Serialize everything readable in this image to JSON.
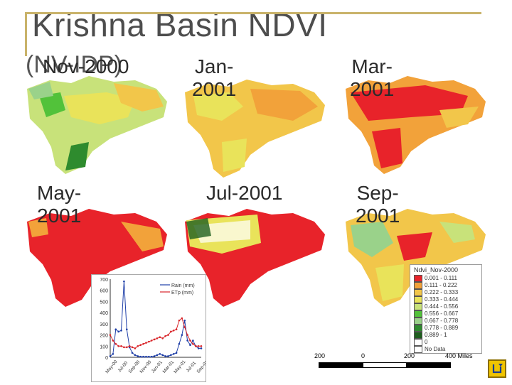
{
  "title": "Krishna Basin NDVI",
  "ghost_text": "(NV-IDP)",
  "panels": [
    {
      "label_line1": "Nov-2000",
      "label_line2": ""
    },
    {
      "label_line1": "Jan-",
      "label_line2": "2001"
    },
    {
      "label_line1": "Mar-",
      "label_line2": "2001"
    },
    {
      "label_line1": "May-",
      "label_line2": "2001"
    },
    {
      "label_line1": "Jul-2001",
      "label_line2": ""
    },
    {
      "label_line1": "Sep-",
      "label_line2": "2001"
    }
  ],
  "legend": {
    "title": "Ndvi_Nov-2000",
    "items": [
      {
        "label": "0.001 - 0.111",
        "color": "#e8232a"
      },
      {
        "label": "0.111 - 0.222",
        "color": "#f2a23a"
      },
      {
        "label": "0.222 - 0.333",
        "color": "#f2c64a"
      },
      {
        "label": "0.333 - 0.444",
        "color": "#e9e35a"
      },
      {
        "label": "0.444 - 0.556",
        "color": "#c8e27a"
      },
      {
        "label": "0.556 - 0.667",
        "color": "#52c23a"
      },
      {
        "label": "0.667 - 0.778",
        "color": "#9ad28a"
      },
      {
        "label": "0.778 - 0.889",
        "color": "#2e8b2e"
      },
      {
        "label": "0.889 - 1",
        "color": "#1e5e1e"
      },
      {
        "label": "0",
        "color": "#ffffff"
      },
      {
        "label": "No Data",
        "color": "#ffffff"
      }
    ]
  },
  "scale": {
    "labels": [
      "200",
      "0",
      "200",
      "400 Miles"
    ]
  },
  "chart_data": {
    "type": "line",
    "title": "",
    "xlabel": "",
    "ylabel": "",
    "ylim": [
      0,
      700
    ],
    "yticks": [
      0,
      100,
      200,
      300,
      400,
      500,
      600,
      700
    ],
    "categories": [
      "May-00",
      "Jul-00",
      "Sep-00",
      "Nov-00",
      "Jan-01",
      "Mar-01",
      "May-01",
      "Jul-01",
      "Sep-01"
    ],
    "x": [
      0,
      1,
      2,
      3,
      4,
      5,
      6,
      7,
      8,
      9,
      10,
      11,
      12,
      13,
      14,
      15,
      16,
      17,
      18,
      19,
      20,
      21,
      22,
      23,
      24,
      25,
      26,
      27,
      28,
      29,
      30,
      31,
      32,
      33
    ],
    "series": [
      {
        "name": "Rain (mm)",
        "color": "#1f3fa8",
        "values": [
          10,
          30,
          250,
          230,
          240,
          680,
          250,
          90,
          40,
          20,
          10,
          5,
          5,
          5,
          5,
          5,
          10,
          20,
          30,
          20,
          10,
          10,
          20,
          30,
          40,
          120,
          200,
          330,
          150,
          110,
          150,
          100,
          80,
          80
        ]
      },
      {
        "name": "ETp (mm)",
        "color": "#d9262b",
        "values": [
          200,
          150,
          120,
          100,
          100,
          90,
          90,
          100,
          90,
          80,
          100,
          110,
          120,
          130,
          140,
          150,
          160,
          170,
          180,
          170,
          190,
          200,
          230,
          240,
          250,
          330,
          350,
          270,
          200,
          150,
          120,
          100,
          100,
          100
        ]
      }
    ]
  }
}
